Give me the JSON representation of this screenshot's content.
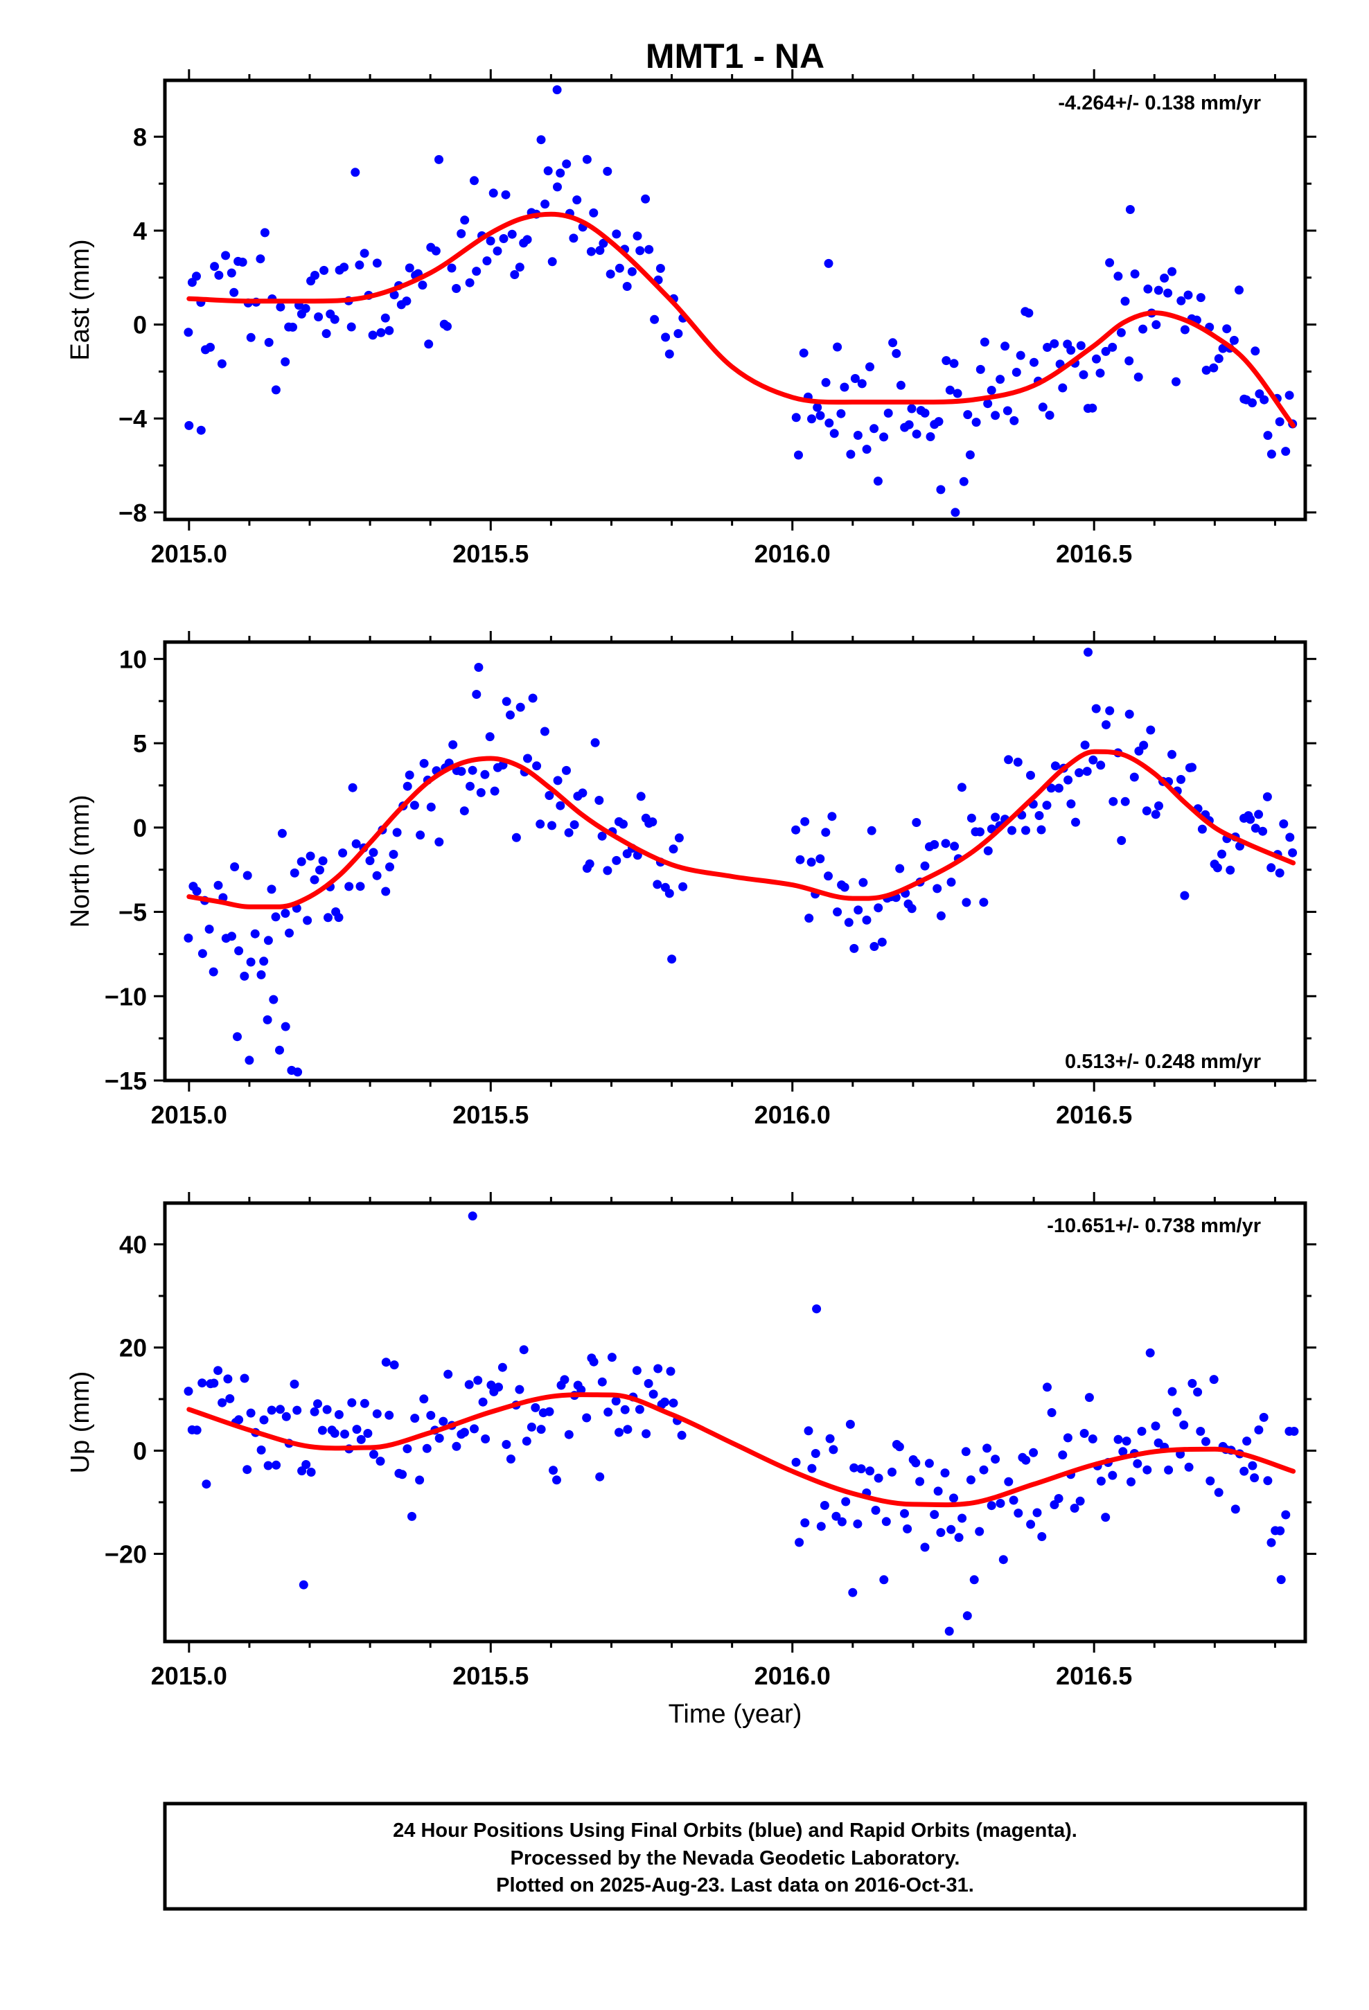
{
  "title": "MMT1 - NA",
  "xlabel": "Time (year)",
  "footer": [
    "24 Hour Positions Using Final Orbits (blue) and Rapid Orbits (magenta).",
    "Processed by the Nevada Geodetic Laboratory.",
    "Plotted on 2025-Aug-23. Last data on 2016-Oct-31."
  ],
  "colors": {
    "points": "#0000ff",
    "model": "#ff0000",
    "frame": "#000000"
  },
  "chart_data": [
    {
      "type": "scatter",
      "ylabel": "East (mm)",
      "rate_label": "-4.264+/- 0.138 mm/yr",
      "xlim": [
        2014.96,
        2016.85
      ],
      "ylim": [
        -8.3,
        10.4
      ],
      "xticks": [
        "2015.0",
        "2015.5",
        "2016.0",
        "2016.5"
      ],
      "yticks": [
        -8,
        -4,
        0,
        4,
        8
      ],
      "gaps": [
        [
          2015.82,
          2016.0
        ]
      ],
      "model_curve": {
        "x": [
          2015.0,
          2015.1,
          2015.2,
          2015.3,
          2015.4,
          2015.5,
          2015.55,
          2015.6,
          2015.65,
          2015.7,
          2015.8,
          2015.9,
          2016.0,
          2016.1,
          2016.2,
          2016.3,
          2016.4,
          2016.5,
          2016.55,
          2016.6,
          2016.65,
          2016.7,
          2016.75,
          2016.83
        ],
        "y": [
          1.1,
          1.0,
          1.0,
          1.2,
          2.2,
          3.9,
          4.5,
          4.7,
          4.4,
          3.5,
          1.0,
          -1.8,
          -3.1,
          -3.3,
          -3.3,
          -3.2,
          -2.6,
          -0.9,
          0.1,
          0.5,
          0.2,
          -0.5,
          -1.5,
          -4.3
        ]
      },
      "scatter": {
        "sigma": 1.5,
        "sigma2": 1.5,
        "n": 265,
        "seed": 11,
        "outliers": [
          [
            2015.61,
            10.0
          ],
          [
            2016.06,
            2.6
          ],
          [
            2016.27,
            -8.0
          ],
          [
            2016.56,
            4.9
          ],
          [
            2015.0,
            -4.3
          ],
          [
            2015.02,
            -4.5
          ]
        ]
      }
    },
    {
      "type": "scatter",
      "ylabel": "North (mm)",
      "rate_label": "0.513+/- 0.248 mm/yr",
      "xlim": [
        2014.96,
        2016.85
      ],
      "ylim": [
        -15.0,
        11.0
      ],
      "xticks": [
        "2015.0",
        "2015.5",
        "2016.0",
        "2016.5"
      ],
      "yticks": [
        -15,
        -10,
        -5,
        0,
        5,
        10
      ],
      "gaps": [
        [
          2015.82,
          2016.0
        ]
      ],
      "model_curve": {
        "x": [
          2015.0,
          2015.05,
          2015.1,
          2015.15,
          2015.2,
          2015.25,
          2015.3,
          2015.35,
          2015.4,
          2015.45,
          2015.5,
          2015.55,
          2015.6,
          2015.65,
          2015.7,
          2015.8,
          2015.9,
          2016.0,
          2016.1,
          2016.15,
          2016.2,
          2016.3,
          2016.4,
          2016.45,
          2016.5,
          2016.55,
          2016.6,
          2016.65,
          2016.7,
          2016.75,
          2016.83
        ],
        "y": [
          -4.1,
          -4.4,
          -4.7,
          -4.7,
          -4.1,
          -2.8,
          -0.9,
          1.1,
          2.8,
          3.8,
          4.1,
          3.6,
          2.3,
          0.8,
          -0.4,
          -2.2,
          -2.9,
          -3.4,
          -4.2,
          -4.1,
          -3.4,
          -1.4,
          1.8,
          3.5,
          4.5,
          4.3,
          3.2,
          1.5,
          0.0,
          -0.9,
          -2.1
        ]
      },
      "scatter": {
        "sigma": 1.9,
        "sigma2": 1.9,
        "n": 265,
        "seed": 23,
        "outliers": [
          [
            2016.49,
            10.4
          ],
          [
            2015.48,
            9.5
          ],
          [
            2015.8,
            -7.8
          ],
          [
            2015.18,
            -14.5
          ],
          [
            2015.17,
            -14.4
          ],
          [
            2015.15,
            -13.2
          ],
          [
            2015.1,
            -13.8
          ],
          [
            2015.08,
            -12.4
          ],
          [
            2015.16,
            -11.8
          ],
          [
            2015.13,
            -11.4
          ],
          [
            2015.14,
            -10.2
          ]
        ]
      }
    },
    {
      "type": "scatter",
      "ylabel": "Up (mm)",
      "rate_label": "-10.651+/- 0.738 mm/yr",
      "xlim": [
        2014.96,
        2016.85
      ],
      "ylim": [
        -37.0,
        48.0
      ],
      "xticks": [
        "2015.0",
        "2015.5",
        "2016.0",
        "2016.5"
      ],
      "yticks": [
        -20,
        0,
        20,
        40
      ],
      "gaps": [
        [
          2015.82,
          2016.0
        ]
      ],
      "model_curve": {
        "x": [
          2015.0,
          2015.1,
          2015.2,
          2015.3,
          2015.4,
          2015.5,
          2015.6,
          2015.7,
          2015.8,
          2015.9,
          2016.0,
          2016.1,
          2016.2,
          2016.3,
          2016.4,
          2016.5,
          2016.6,
          2016.7,
          2016.75,
          2016.83
        ],
        "y": [
          8.0,
          4.0,
          0.8,
          0.6,
          3.5,
          7.5,
          10.5,
          10.8,
          7.0,
          1.5,
          -4.0,
          -8.3,
          -10.4,
          -10.1,
          -6.5,
          -2.7,
          -0.2,
          0.3,
          -0.8,
          -4.0
        ]
      },
      "scatter": {
        "sigma": 6.5,
        "sigma2": 7.5,
        "n": 265,
        "seed": 37,
        "outliers": [
          [
            2015.47,
            45.5
          ],
          [
            2016.26,
            -35.0
          ],
          [
            2016.29,
            -32.0
          ],
          [
            2016.04,
            27.5
          ],
          [
            2015.19,
            -26.0
          ],
          [
            2016.81,
            -25.0
          ],
          [
            2016.1,
            -27.5
          ]
        ]
      }
    }
  ]
}
